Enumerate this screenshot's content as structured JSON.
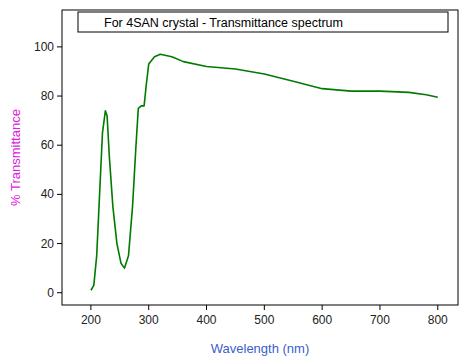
{
  "chart_data": {
    "type": "line",
    "title": "For 4SAN crystal - Transmittance spectrum",
    "x_label": "Wavelength (nm)",
    "y_label": "% Transmittance",
    "x": [
      200,
      205,
      210,
      215,
      220,
      225,
      228,
      232,
      238,
      245,
      252,
      258,
      265,
      272,
      278,
      282,
      287,
      292,
      296,
      300,
      310,
      320,
      340,
      360,
      400,
      450,
      500,
      550,
      600,
      650,
      700,
      750,
      780,
      800
    ],
    "values": [
      1,
      3,
      15,
      40,
      65,
      74,
      72,
      55,
      35,
      20,
      12,
      10,
      15,
      35,
      60,
      75,
      76,
      76,
      85,
      93,
      96,
      97,
      96,
      94,
      92,
      91,
      89,
      86,
      83,
      82,
      82,
      81.5,
      80.5,
      79.5
    ],
    "color": "#007a00",
    "xlim": [
      150,
      835
    ],
    "ylim": [
      -5,
      115
    ],
    "xticks": [
      200,
      300,
      400,
      500,
      600,
      700,
      800
    ],
    "yticks": [
      0,
      20,
      40,
      60,
      80,
      100
    ],
    "grid": false
  }
}
